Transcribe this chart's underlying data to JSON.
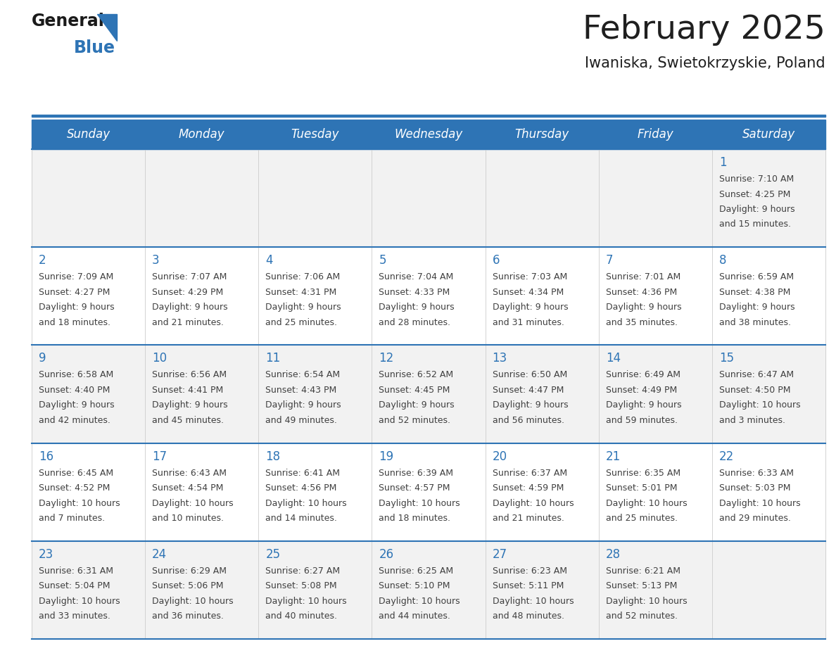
{
  "title": "February 2025",
  "subtitle": "Iwaniska, Swietokrzyskie, Poland",
  "days_of_week": [
    "Sunday",
    "Monday",
    "Tuesday",
    "Wednesday",
    "Thursday",
    "Friday",
    "Saturday"
  ],
  "header_bg": "#2E74B5",
  "header_text": "#FFFFFF",
  "row_bg_odd": "#F2F2F2",
  "row_bg_even": "#FFFFFF",
  "cell_border_color": "#2E74B5",
  "day_number_color": "#2E74B5",
  "info_text_color": "#404040",
  "title_color": "#1F1F1F",
  "calendar_data": [
    [
      {
        "day": null,
        "sunrise": null,
        "sunset": null,
        "daylight": null
      },
      {
        "day": null,
        "sunrise": null,
        "sunset": null,
        "daylight": null
      },
      {
        "day": null,
        "sunrise": null,
        "sunset": null,
        "daylight": null
      },
      {
        "day": null,
        "sunrise": null,
        "sunset": null,
        "daylight": null
      },
      {
        "day": null,
        "sunrise": null,
        "sunset": null,
        "daylight": null
      },
      {
        "day": null,
        "sunrise": null,
        "sunset": null,
        "daylight": null
      },
      {
        "day": 1,
        "sunrise": "7:10 AM",
        "sunset": "4:25 PM",
        "daylight": "9 hours and 15 minutes."
      }
    ],
    [
      {
        "day": 2,
        "sunrise": "7:09 AM",
        "sunset": "4:27 PM",
        "daylight": "9 hours and 18 minutes."
      },
      {
        "day": 3,
        "sunrise": "7:07 AM",
        "sunset": "4:29 PM",
        "daylight": "9 hours and 21 minutes."
      },
      {
        "day": 4,
        "sunrise": "7:06 AM",
        "sunset": "4:31 PM",
        "daylight": "9 hours and 25 minutes."
      },
      {
        "day": 5,
        "sunrise": "7:04 AM",
        "sunset": "4:33 PM",
        "daylight": "9 hours and 28 minutes."
      },
      {
        "day": 6,
        "sunrise": "7:03 AM",
        "sunset": "4:34 PM",
        "daylight": "9 hours and 31 minutes."
      },
      {
        "day": 7,
        "sunrise": "7:01 AM",
        "sunset": "4:36 PM",
        "daylight": "9 hours and 35 minutes."
      },
      {
        "day": 8,
        "sunrise": "6:59 AM",
        "sunset": "4:38 PM",
        "daylight": "9 hours and 38 minutes."
      }
    ],
    [
      {
        "day": 9,
        "sunrise": "6:58 AM",
        "sunset": "4:40 PM",
        "daylight": "9 hours and 42 minutes."
      },
      {
        "day": 10,
        "sunrise": "6:56 AM",
        "sunset": "4:41 PM",
        "daylight": "9 hours and 45 minutes."
      },
      {
        "day": 11,
        "sunrise": "6:54 AM",
        "sunset": "4:43 PM",
        "daylight": "9 hours and 49 minutes."
      },
      {
        "day": 12,
        "sunrise": "6:52 AM",
        "sunset": "4:45 PM",
        "daylight": "9 hours and 52 minutes."
      },
      {
        "day": 13,
        "sunrise": "6:50 AM",
        "sunset": "4:47 PM",
        "daylight": "9 hours and 56 minutes."
      },
      {
        "day": 14,
        "sunrise": "6:49 AM",
        "sunset": "4:49 PM",
        "daylight": "9 hours and 59 minutes."
      },
      {
        "day": 15,
        "sunrise": "6:47 AM",
        "sunset": "4:50 PM",
        "daylight": "10 hours and 3 minutes."
      }
    ],
    [
      {
        "day": 16,
        "sunrise": "6:45 AM",
        "sunset": "4:52 PM",
        "daylight": "10 hours and 7 minutes."
      },
      {
        "day": 17,
        "sunrise": "6:43 AM",
        "sunset": "4:54 PM",
        "daylight": "10 hours and 10 minutes."
      },
      {
        "day": 18,
        "sunrise": "6:41 AM",
        "sunset": "4:56 PM",
        "daylight": "10 hours and 14 minutes."
      },
      {
        "day": 19,
        "sunrise": "6:39 AM",
        "sunset": "4:57 PM",
        "daylight": "10 hours and 18 minutes."
      },
      {
        "day": 20,
        "sunrise": "6:37 AM",
        "sunset": "4:59 PM",
        "daylight": "10 hours and 21 minutes."
      },
      {
        "day": 21,
        "sunrise": "6:35 AM",
        "sunset": "5:01 PM",
        "daylight": "10 hours and 25 minutes."
      },
      {
        "day": 22,
        "sunrise": "6:33 AM",
        "sunset": "5:03 PM",
        "daylight": "10 hours and 29 minutes."
      }
    ],
    [
      {
        "day": 23,
        "sunrise": "6:31 AM",
        "sunset": "5:04 PM",
        "daylight": "10 hours and 33 minutes."
      },
      {
        "day": 24,
        "sunrise": "6:29 AM",
        "sunset": "5:06 PM",
        "daylight": "10 hours and 36 minutes."
      },
      {
        "day": 25,
        "sunrise": "6:27 AM",
        "sunset": "5:08 PM",
        "daylight": "10 hours and 40 minutes."
      },
      {
        "day": 26,
        "sunrise": "6:25 AM",
        "sunset": "5:10 PM",
        "daylight": "10 hours and 44 minutes."
      },
      {
        "day": 27,
        "sunrise": "6:23 AM",
        "sunset": "5:11 PM",
        "daylight": "10 hours and 48 minutes."
      },
      {
        "day": 28,
        "sunrise": "6:21 AM",
        "sunset": "5:13 PM",
        "daylight": "10 hours and 52 minutes."
      },
      {
        "day": null,
        "sunrise": null,
        "sunset": null,
        "daylight": null
      }
    ]
  ]
}
